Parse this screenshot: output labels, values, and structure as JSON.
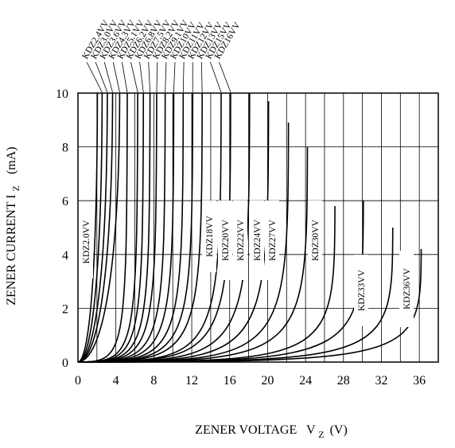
{
  "chart_data": {
    "type": "line",
    "xlabel": "ZENER VOLTAGE",
    "xlabel_symbol": "V",
    "xlabel_sub": "Z",
    "xlabel_unit": "(V)",
    "ylabel": "ZENER CURRENT I",
    "ylabel_sub": "Z",
    "ylabel_unit": "(mA)",
    "xlim": [
      0,
      38
    ],
    "ylim": [
      0,
      10
    ],
    "x_ticks": [
      0,
      2,
      4,
      6,
      8,
      10,
      12,
      14,
      16,
      18,
      20,
      22,
      24,
      26,
      28,
      30,
      32,
      34,
      36,
      38
    ],
    "x_tick_labels": [
      "0",
      "4",
      "8",
      "12",
      "16",
      "20",
      "24",
      "28",
      "32",
      "36"
    ],
    "y_ticks": [
      0,
      2,
      4,
      6,
      8,
      10
    ],
    "grid": true,
    "series": [
      {
        "name": "KDZ2.0VV",
        "vz": 2.0,
        "end": [
          2.05,
          10
        ]
      },
      {
        "name": "KDZ2.4VV",
        "vz": 2.4,
        "end": [
          2.55,
          10
        ]
      },
      {
        "name": "KDZ3.0VV",
        "vz": 3.0,
        "end": [
          3.1,
          10
        ]
      },
      {
        "name": "KDZ3.6VV",
        "vz": 3.6,
        "end": [
          3.65,
          10
        ]
      },
      {
        "name": "KDZ4.3VV",
        "vz": 4.3,
        "end": [
          4.4,
          10
        ]
      },
      {
        "name": "KDZ5.1VV",
        "vz": 5.1,
        "end": [
          5.2,
          10
        ]
      },
      {
        "name": "KDZ6.2VV",
        "vz": 6.2,
        "end": [
          6.3,
          10
        ]
      },
      {
        "name": "KDZ6.8VV",
        "vz": 6.8,
        "end": [
          6.9,
          10
        ]
      },
      {
        "name": "KDZ7.5VV",
        "vz": 7.5,
        "end": [
          7.6,
          10
        ]
      },
      {
        "name": "KDZ8.2VV",
        "vz": 8.2,
        "end": [
          8.3,
          10
        ]
      },
      {
        "name": "KDZ9.1VV",
        "vz": 9.1,
        "end": [
          9.2,
          10
        ]
      },
      {
        "name": "KDZ10VV",
        "vz": 10.0,
        "end": [
          10.1,
          10
        ]
      },
      {
        "name": "KDZ11VV",
        "vz": 11.0,
        "end": [
          11.1,
          10
        ]
      },
      {
        "name": "KDZ12VV",
        "vz": 12.0,
        "end": [
          12.1,
          10
        ]
      },
      {
        "name": "KDZ13VV",
        "vz": 13.0,
        "end": [
          13.1,
          10
        ]
      },
      {
        "name": "KDZ15VV",
        "vz": 15.0,
        "end": [
          15.1,
          10
        ]
      },
      {
        "name": "KDZ16VV",
        "vz": 16.0,
        "end": [
          16.1,
          10
        ]
      },
      {
        "name": "KDZ18VV",
        "vz": 18.0,
        "end": [
          18.1,
          10
        ]
      },
      {
        "name": "KDZ20VV",
        "vz": 20.0,
        "end": [
          20.1,
          9.7
        ]
      },
      {
        "name": "KDZ22VV",
        "vz": 22.0,
        "end": [
          22.2,
          8.9
        ]
      },
      {
        "name": "KDZ24VV",
        "vz": 24.0,
        "end": [
          24.2,
          8.0
        ]
      },
      {
        "name": "KDZ27VV",
        "vz": 27.0,
        "end": [
          27.1,
          5.8
        ]
      },
      {
        "name": "KDZ30VV",
        "vz": 30.0,
        "end": [
          30.1,
          6.0
        ]
      },
      {
        "name": "KDZ33VV",
        "vz": 33.0,
        "end": [
          33.2,
          5.0
        ]
      },
      {
        "name": "KDZ36VV",
        "vz": 36.0,
        "end": [
          36.2,
          4.2
        ]
      }
    ]
  }
}
